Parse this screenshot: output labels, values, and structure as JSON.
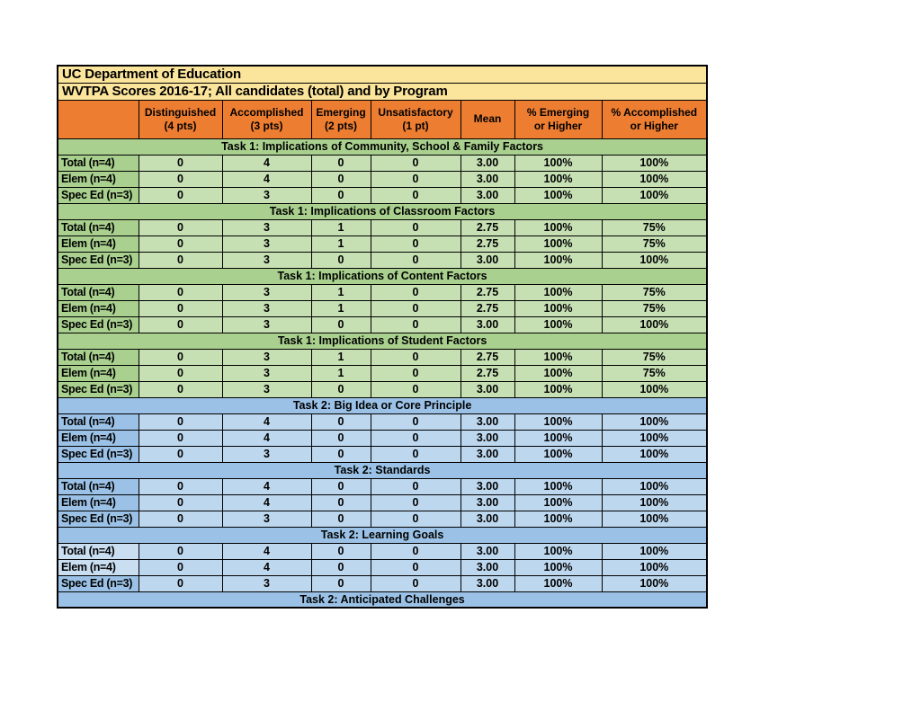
{
  "colors": {
    "page_bg": "#ffffff",
    "title_bg": "#fbe49b",
    "header_bg": "#ed7d31",
    "green_band": "#a9d08e",
    "green_data": "#c6e0b4",
    "blue_band": "#9bc2e6",
    "blue_data": "#bdd7ee",
    "blue_highlight": "#cadef2",
    "border": "#000000",
    "text": "#000000"
  },
  "table": {
    "titles": {
      "line1": "UC Department of Education",
      "line2": "WVTPA Scores 2016-17; All candidates (total) and by Program"
    },
    "header": {
      "corner": "",
      "cols": [
        "Distinguished\n(4 pts)",
        "Accomplished\n(3 pts)",
        "Emerging\n(2 pts)",
        "Unsatisfactory\n(1 pt)",
        "Mean",
        "% Emerging\nor Higher",
        "% Accomplished\nor Higher"
      ]
    },
    "sections": [
      {
        "title": "Task 1: Implications of Community, School & Family Factors",
        "theme": "green",
        "rows": [
          {
            "label": "Total (n=4)",
            "values": [
              "0",
              "4",
              "0",
              "0",
              "3.00",
              "100%",
              "100%"
            ]
          },
          {
            "label": "Elem (n=4)",
            "values": [
              "0",
              "4",
              "0",
              "0",
              "3.00",
              "100%",
              "100%"
            ]
          },
          {
            "label": "Spec Ed (n=3)",
            "values": [
              "0",
              "3",
              "0",
              "0",
              "3.00",
              "100%",
              "100%"
            ]
          }
        ]
      },
      {
        "title": "Task 1: Implications of Classroom Factors",
        "theme": "green",
        "rows": [
          {
            "label": "Total (n=4)",
            "values": [
              "0",
              "3",
              "1",
              "0",
              "2.75",
              "100%",
              "75%"
            ]
          },
          {
            "label": "Elem (n=4)",
            "values": [
              "0",
              "3",
              "1",
              "0",
              "2.75",
              "100%",
              "75%"
            ]
          },
          {
            "label": "Spec Ed (n=3)",
            "values": [
              "0",
              "3",
              "0",
              "0",
              "3.00",
              "100%",
              "100%"
            ]
          }
        ]
      },
      {
        "title": "Task 1: Implications of Content Factors",
        "theme": "green",
        "rows": [
          {
            "label": "Total (n=4)",
            "values": [
              "0",
              "3",
              "1",
              "0",
              "2.75",
              "100%",
              "75%"
            ]
          },
          {
            "label": "Elem (n=4)",
            "values": [
              "0",
              "3",
              "1",
              "0",
              "2.75",
              "100%",
              "75%"
            ]
          },
          {
            "label": "Spec Ed (n=3)",
            "values": [
              "0",
              "3",
              "0",
              "0",
              "3.00",
              "100%",
              "100%"
            ]
          }
        ]
      },
      {
        "title": "Task 1: Implications of Student Factors",
        "theme": "green",
        "rows": [
          {
            "label": "Total (n=4)",
            "values": [
              "0",
              "3",
              "1",
              "0",
              "2.75",
              "100%",
              "75%"
            ]
          },
          {
            "label": "Elem (n=4)",
            "values": [
              "0",
              "3",
              "1",
              "0",
              "2.75",
              "100%",
              "75%"
            ]
          },
          {
            "label": "Spec Ed (n=3)",
            "values": [
              "0",
              "3",
              "0",
              "0",
              "3.00",
              "100%",
              "100%"
            ]
          }
        ]
      },
      {
        "title": "Task 2: Big Idea or Core Principle",
        "theme": "blue",
        "rows": [
          {
            "label": "Total (n=4)",
            "values": [
              "0",
              "4",
              "0",
              "0",
              "3.00",
              "100%",
              "100%"
            ]
          },
          {
            "label": "Elem (n=4)",
            "values": [
              "0",
              "4",
              "0",
              "0",
              "3.00",
              "100%",
              "100%"
            ]
          },
          {
            "label": "Spec Ed (n=3)",
            "values": [
              "0",
              "3",
              "0",
              "0",
              "3.00",
              "100%",
              "100%"
            ]
          }
        ]
      },
      {
        "title": "Task 2: Standards",
        "theme": "blue",
        "rows": [
          {
            "label": "Total (n=4)",
            "values": [
              "0",
              "4",
              "0",
              "0",
              "3.00",
              "100%",
              "100%"
            ]
          },
          {
            "label": "Elem (n=4)",
            "values": [
              "0",
              "4",
              "0",
              "0",
              "3.00",
              "100%",
              "100%"
            ]
          },
          {
            "label": "Spec Ed (n=3)",
            "values": [
              "0",
              "3",
              "0",
              "0",
              "3.00",
              "100%",
              "100%"
            ]
          }
        ]
      },
      {
        "title": "Task 2: Learning Goals",
        "theme": "blue",
        "rows": [
          {
            "label": "Total (n=4)",
            "highlight": true,
            "values": [
              "0",
              "4",
              "0",
              "0",
              "3.00",
              "100%",
              "100%"
            ]
          },
          {
            "label": "Elem (n=4)",
            "highlight": true,
            "values": [
              "0",
              "4",
              "0",
              "0",
              "3.00",
              "100%",
              "100%"
            ]
          },
          {
            "label": "Spec Ed (n=3)",
            "values": [
              "0",
              "3",
              "0",
              "0",
              "3.00",
              "100%",
              "100%"
            ]
          }
        ]
      },
      {
        "title": "Task 2: Anticipated Challenges",
        "theme": "blue",
        "rows": []
      }
    ]
  }
}
